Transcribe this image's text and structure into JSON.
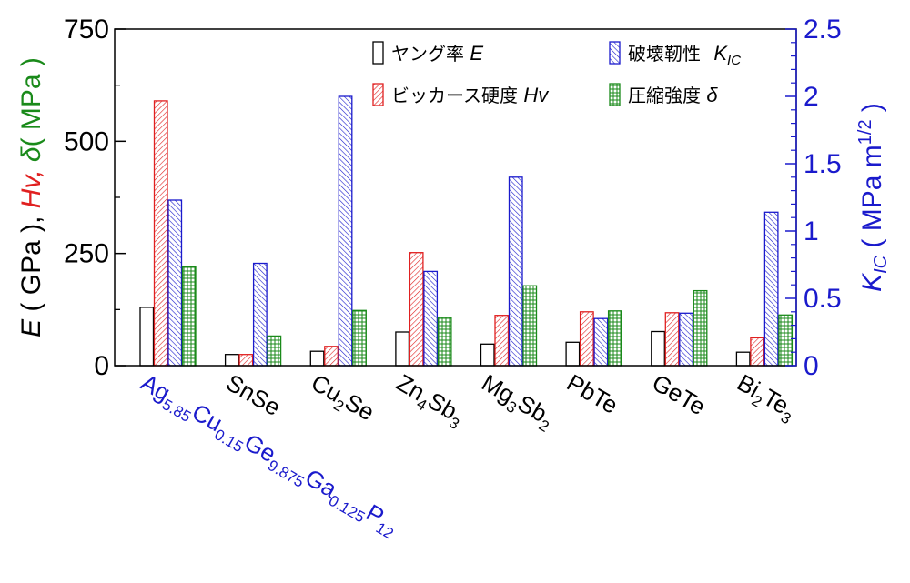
{
  "chart_data": {
    "type": "bar",
    "categories": [
      {
        "parts": [
          [
            "Ag",
            ""
          ],
          [
            "5.85",
            "sub"
          ],
          [
            "Cu",
            ""
          ],
          [
            "0.15",
            "sub"
          ],
          [
            "Ge",
            ""
          ],
          [
            "9.875",
            "sub"
          ],
          [
            "Ga",
            ""
          ],
          [
            "0.125",
            "sub"
          ],
          [
            "P",
            ""
          ],
          [
            "12",
            "sub"
          ]
        ],
        "color": "#1a1acc"
      },
      {
        "parts": [
          [
            "SnSe",
            ""
          ]
        ],
        "color": "#000000"
      },
      {
        "parts": [
          [
            "Cu",
            ""
          ],
          [
            "2",
            "sub"
          ],
          [
            "Se",
            ""
          ]
        ],
        "color": "#000000"
      },
      {
        "parts": [
          [
            "Zn",
            ""
          ],
          [
            "4",
            "sub"
          ],
          [
            "Sb",
            ""
          ],
          [
            "3",
            "sub"
          ]
        ],
        "color": "#000000"
      },
      {
        "parts": [
          [
            "Mg",
            ""
          ],
          [
            "3",
            "sub"
          ],
          [
            "Sb",
            ""
          ],
          [
            "2",
            "sub"
          ]
        ],
        "color": "#000000"
      },
      {
        "parts": [
          [
            "PbTe",
            ""
          ]
        ],
        "color": "#000000"
      },
      {
        "parts": [
          [
            "GeTe",
            ""
          ]
        ],
        "color": "#000000"
      },
      {
        "parts": [
          [
            "Bi",
            ""
          ],
          [
            "2",
            "sub"
          ],
          [
            "Te",
            ""
          ],
          [
            "3",
            "sub"
          ]
        ],
        "color": "#000000"
      }
    ],
    "series": [
      {
        "name": "ヤング率 E",
        "legend_text": "ヤング率",
        "legend_symbol": "E",
        "axis": "left",
        "style": "white",
        "stroke": "#000000",
        "values": [
          130,
          25,
          32,
          75,
          48,
          52,
          76,
          30
        ]
      },
      {
        "name": "ビッカース硬度 Hv",
        "legend_text": "ビッカース硬度",
        "legend_symbol": "Hv",
        "axis": "left",
        "style": "red",
        "stroke": "#e02020",
        "values": [
          590,
          25,
          43,
          252,
          112,
          120,
          118,
          62
        ]
      },
      {
        "name": "破壊靭性 K_IC",
        "legend_text": "破壊靭性",
        "legend_symbol": "K",
        "legend_sub": "IC",
        "axis": "right",
        "style": "blue",
        "stroke": "#1a1acc",
        "values": [
          1.23,
          0.76,
          2.0,
          0.7,
          1.4,
          0.35,
          0.39,
          1.14
        ]
      },
      {
        "name": "圧縮強度 δ",
        "legend_text": "圧縮強度",
        "legend_symbol": "δ",
        "axis": "left",
        "style": "green",
        "stroke": "#1a8a1a",
        "values": [
          220,
          66,
          123,
          108,
          178,
          122,
          167,
          113
        ]
      }
    ],
    "y_left": {
      "min": 0,
      "max": 750,
      "ticks": [
        "0",
        "250",
        "500",
        "750"
      ]
    },
    "y_right": {
      "min": 0,
      "max": 2.5,
      "ticks": [
        "0",
        "0.5",
        "1",
        "1.5",
        "2",
        "2.5"
      ]
    },
    "ylabel_left": {
      "parts": [
        {
          "t": "E",
          "c": "#000000",
          "i": true
        },
        {
          "t": " ( GPa ), ",
          "c": "#000000"
        },
        {
          "t": "Hv,",
          "c": "#e02020",
          "i": true
        },
        {
          "t": " ",
          "c": "#000000"
        },
        {
          "t": "δ",
          "c": "#1a8a1a",
          "i": true
        },
        {
          "t": "( MPa )",
          "c": "#1a8a1a"
        }
      ]
    },
    "ylabel_right": {
      "parts": [
        {
          "t": "K",
          "c": "#1a1acc",
          "i": true
        },
        {
          "t": "IC",
          "c": "#1a1acc",
          "i": true,
          "sub": true
        },
        {
          "t": " ( MPa m",
          "c": "#1a1acc"
        },
        {
          "t": "1/2",
          "c": "#1a1acc",
          "sup": true
        },
        {
          "t": " )",
          "c": "#1a1acc"
        }
      ]
    },
    "colors": {
      "left_axis": "#000000",
      "right_axis": "#1a1acc",
      "red": "#e02020",
      "blue": "#1a1acc",
      "green": "#1a8a1a"
    },
    "grid": false,
    "legend_position": "top-right"
  }
}
